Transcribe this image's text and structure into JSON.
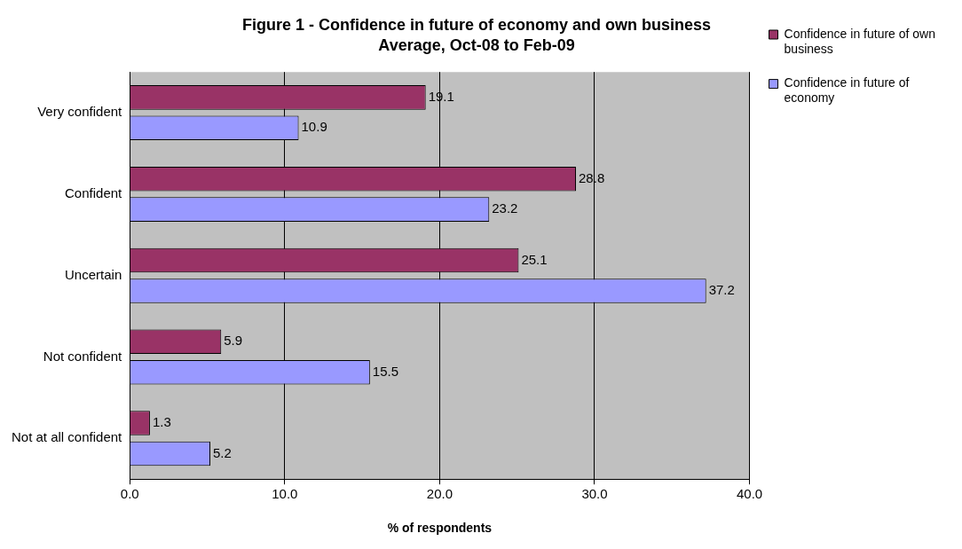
{
  "chart_data": {
    "type": "bar",
    "orientation": "horizontal",
    "title": "Figure 1 - Confidence in future of economy and own business",
    "subtitle": "Average, Oct-08 to Feb-09",
    "xlabel": "% of respondents",
    "categories": [
      "Very confident",
      "Confident",
      "Uncertain",
      "Not confident",
      "Not at all confident"
    ],
    "series": [
      {
        "name": "Confidence in future of own business",
        "color": "#993366",
        "values": [
          19.1,
          28.8,
          25.1,
          5.9,
          1.3
        ]
      },
      {
        "name": "Confidence in future of economy",
        "color": "#9999ff",
        "values": [
          10.9,
          23.2,
          37.2,
          15.5,
          5.2
        ]
      }
    ],
    "xlim": [
      0,
      40
    ],
    "xticks": [
      {
        "value": 0,
        "label": "0.0"
      },
      {
        "value": 10,
        "label": "10.0"
      },
      {
        "value": 20,
        "label": "20.0"
      },
      {
        "value": 30,
        "label": "30.0"
      },
      {
        "value": 40,
        "label": "40.0"
      }
    ],
    "grid": "x",
    "legend": "right",
    "data_labels": true
  }
}
